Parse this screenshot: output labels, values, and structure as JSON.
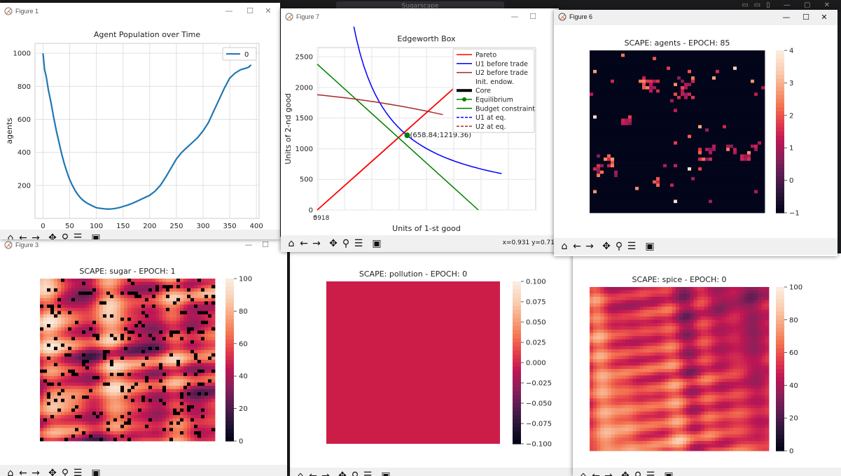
{
  "desktop": {
    "search_label": "Sugarscape"
  },
  "windows": {
    "fig1": {
      "title": "Figure 1"
    },
    "fig7": {
      "title": "Figure 7",
      "status": "x=0.931 y=0.71"
    },
    "fig6": {
      "title": "Figure 6"
    },
    "fig3": {
      "title": "Figure 3"
    }
  },
  "toolbar_icons": [
    "home-icon",
    "back-icon",
    "forward-icon",
    "pan-icon",
    "zoom-icon",
    "configure-icon",
    "save-icon"
  ],
  "colormap": [
    "#03051a",
    "#2a1638",
    "#591c52",
    "#8a2059",
    "#bd1655",
    "#e43d4b",
    "#f47551",
    "#f7a681",
    "#fad0b5",
    "#faebdd"
  ],
  "chart_data": [
    {
      "id": "population",
      "type": "line",
      "title": "Agent Population over Time",
      "xlabel": "epochs",
      "ylabel": "agents",
      "xlim": [
        -15,
        405
      ],
      "ylim": [
        0,
        1060
      ],
      "xticks": [
        0,
        50,
        100,
        150,
        200,
        250,
        300,
        350,
        400
      ],
      "yticks": [
        200,
        400,
        600,
        800,
        1000
      ],
      "grid": true,
      "legend": "top-right",
      "series": [
        {
          "name": "0",
          "color": "#1f77b4",
          "x": [
            0,
            3,
            6,
            10,
            15,
            20,
            25,
            30,
            35,
            40,
            45,
            50,
            55,
            60,
            65,
            70,
            75,
            80,
            85,
            90,
            95,
            100,
            105,
            110,
            115,
            120,
            125,
            130,
            135,
            140,
            145,
            150,
            160,
            170,
            180,
            190,
            200,
            210,
            220,
            230,
            240,
            250,
            260,
            270,
            280,
            290,
            300,
            310,
            320,
            330,
            340,
            350,
            360,
            370,
            380,
            385,
            390
          ],
          "y": [
            1000,
            900,
            860,
            780,
            700,
            610,
            530,
            460,
            390,
            330,
            280,
            235,
            200,
            170,
            145,
            125,
            110,
            98,
            88,
            80,
            72,
            65,
            62,
            60,
            58,
            57,
            57,
            58,
            60,
            63,
            67,
            72,
            82,
            95,
            110,
            125,
            140,
            165,
            200,
            250,
            305,
            360,
            400,
            430,
            460,
            490,
            530,
            580,
            650,
            720,
            790,
            850,
            880,
            900,
            910,
            915,
            930
          ]
        }
      ]
    },
    {
      "id": "edgeworth",
      "type": "line",
      "title": "Edgeworth Box",
      "xlabel": "Units of 1-st good",
      "ylabel": "Units of 2-nd good",
      "ylim": [
        0,
        2650
      ],
      "yticks": [
        0,
        500,
        1000,
        1500,
        2000,
        2500
      ],
      "xtick_labels": [
        "0",
        "5918"
      ],
      "grid": true,
      "annotation": "(658.84;1219.36)",
      "legend": "top-right",
      "legend_entries": [
        {
          "label": "Pareto",
          "color": "#ff0000",
          "style": "solid"
        },
        {
          "label": "U1 before trade",
          "color": "#0000ff",
          "style": "solid"
        },
        {
          "label": "U2 before trade",
          "color": "#a52a2a",
          "style": "solid"
        },
        {
          "label": "Init. endow.",
          "color": "#ffffff",
          "style": "none"
        },
        {
          "label": "Core",
          "color": "#000000",
          "style": "thick"
        },
        {
          "label": "Equilibrium",
          "color": "#008000",
          "style": "marker"
        },
        {
          "label": "Budget constraint",
          "color": "#008000",
          "style": "solid"
        },
        {
          "label": "U1 at eq.",
          "color": "#0000ff",
          "style": "dashed"
        },
        {
          "label": "U2 at eq.",
          "color": "#a52a2a",
          "style": "dashed"
        }
      ]
    },
    {
      "id": "agents",
      "type": "heatmap",
      "title": "SCAPE: agents - EPOCH: 85",
      "colorbar_ticks": [
        -1,
        0,
        1,
        2,
        3,
        4
      ],
      "colorbar_labels": [
        "−1",
        "0",
        "1",
        "2",
        "3",
        "4"
      ],
      "vmin": -1,
      "vmax": 4
    },
    {
      "id": "sugar",
      "type": "heatmap",
      "title": "SCAPE: sugar - EPOCH: 1",
      "colorbar_ticks": [
        0,
        20,
        40,
        60,
        80,
        100
      ],
      "colorbar_labels": [
        "0",
        "20",
        "40",
        "60",
        "80",
        "100"
      ],
      "vmin": 0,
      "vmax": 100
    },
    {
      "id": "pollution",
      "type": "heatmap",
      "title": "SCAPE: pollution - EPOCH: 0",
      "colorbar_ticks": [
        -0.1,
        -0.075,
        -0.05,
        -0.025,
        0,
        0.025,
        0.05,
        0.075,
        0.1
      ],
      "colorbar_labels": [
        "−0.100",
        "−0.075",
        "−0.050",
        "−0.025",
        "0.000",
        "0.025",
        "0.050",
        "0.075",
        "0.100"
      ],
      "vmin": -0.1,
      "vmax": 0.1,
      "fill_color": "#cc1d49"
    },
    {
      "id": "spice",
      "type": "heatmap",
      "title": "SCAPE: spice - EPOCH: 0",
      "colorbar_ticks": [
        0,
        20,
        40,
        60,
        80,
        100
      ],
      "colorbar_labels": [
        "0",
        "20",
        "40",
        "60",
        "80",
        "100"
      ],
      "vmin": 0,
      "vmax": 100
    }
  ]
}
